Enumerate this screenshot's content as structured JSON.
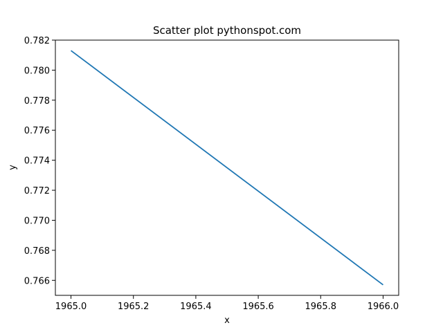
{
  "chart_data": {
    "type": "line",
    "title": "Scatter plot pythonspot.com",
    "xlabel": "x",
    "ylabel": "y",
    "xlim": [
      1964.95,
      1966.05
    ],
    "ylim": [
      0.765,
      0.782
    ],
    "xticks": [
      1965.0,
      1965.2,
      1965.4,
      1965.6,
      1965.8,
      1966.0
    ],
    "xtick_labels": [
      "1965.0",
      "1965.2",
      "1965.4",
      "1965.6",
      "1965.8",
      "1966.0"
    ],
    "yticks": [
      0.766,
      0.768,
      0.77,
      0.772,
      0.774,
      0.776,
      0.778,
      0.78,
      0.782
    ],
    "ytick_labels": [
      "0.766",
      "0.768",
      "0.770",
      "0.772",
      "0.774",
      "0.776",
      "0.778",
      "0.780",
      "0.782"
    ],
    "grid": false,
    "series": [
      {
        "color": "#1f77b4",
        "x": [
          1965.0,
          1966.0
        ],
        "y": [
          0.7813,
          0.7657
        ]
      }
    ]
  }
}
